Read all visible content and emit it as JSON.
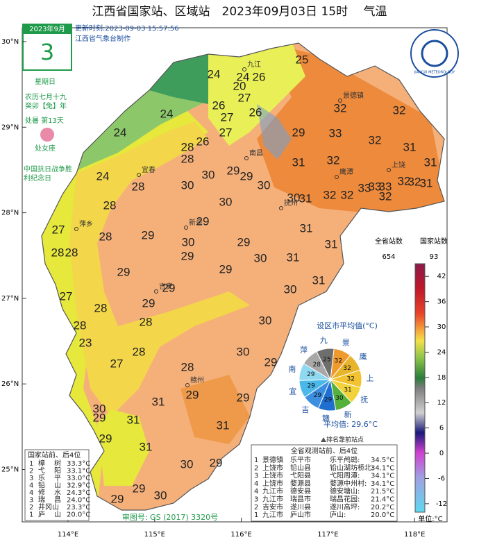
{
  "title": "江西省国家站、区域站　2023年09月03日 15时　 气温",
  "calendar": {
    "month": "2023年9月",
    "day": "3",
    "weekday": "星期日",
    "lunar": "农历七月十九",
    "year_name": "癸卯【兔】年",
    "solar_term": "处暑 第13天",
    "zodiac": "处女座",
    "event": "中国抗日战争胜利纪念日"
  },
  "update": {
    "time": "更新时刻:2023-09-03 15:57:56",
    "maker": "江西省气象台制作"
  },
  "logo": "JIANGXI METEOROLOGY",
  "lat_ticks": [
    {
      "value": 30,
      "label": "30°N"
    },
    {
      "value": 29,
      "label": "29°N"
    },
    {
      "value": 28,
      "label": "28°N"
    },
    {
      "value": 27,
      "label": "27°N"
    },
    {
      "value": 26,
      "label": "26°N"
    },
    {
      "value": 25,
      "label": "25°N"
    }
  ],
  "lon_ticks": [
    {
      "value": 114,
      "label": "114°E"
    },
    {
      "value": 115,
      "label": "115°E"
    },
    {
      "value": 116,
      "label": "116°E"
    },
    {
      "value": 117,
      "label": "117°E"
    },
    {
      "value": 118,
      "label": "118°E"
    }
  ],
  "station_values": [
    "25",
    "24",
    "24",
    "26",
    "20",
    "27",
    "26",
    "27",
    "26",
    "24",
    "24",
    "27",
    "26",
    "28",
    "28",
    "29",
    "32",
    "32",
    "33",
    "32",
    "31",
    "31",
    "30",
    "29",
    "29",
    "30",
    "31",
    "32",
    "24",
    "28",
    "30",
    "30",
    "30",
    "31",
    "32",
    "32",
    "33",
    "33",
    "33",
    "32",
    "32",
    "32",
    "31",
    "28",
    "29",
    "29",
    "28",
    "27",
    "28",
    "28",
    "30",
    "29",
    "31",
    "31",
    "30",
    "29",
    "29",
    "31",
    "31",
    "30",
    "29",
    "29",
    "27",
    "29",
    "30",
    "28",
    "28",
    "28",
    "23",
    "28",
    "27",
    "28",
    "30",
    "29",
    "29",
    "31",
    "29",
    "30",
    "29",
    "31",
    "29",
    "31",
    "31",
    "30",
    "29",
    "29",
    "30",
    "29"
  ],
  "city_names": [
    "九江",
    "景德镇",
    "南昌",
    "上饶",
    "鹰潭",
    "抚州",
    "宜春",
    "新余",
    "萍乡",
    "吉安",
    "赣州"
  ],
  "legend": {
    "all_label": "全省站数",
    "all_count": "654",
    "national_label": "国家站数",
    "national_count": "93",
    "unit": "单位:°C",
    "lim": [
      -14,
      45
    ],
    "ticks": [
      42,
      36,
      30,
      24,
      18,
      12,
      6,
      0,
      -6,
      -12
    ]
  },
  "pie": {
    "title": "设区市平均值(°C)",
    "average": "平均值: 29.6°C",
    "labels": [
      "景",
      "鹰",
      "上",
      "抚",
      "新",
      "赣",
      "吉",
      "宜",
      "南",
      "萍",
      "九"
    ],
    "values": [
      32,
      32,
      32,
      31,
      30,
      29,
      29,
      29,
      29,
      28,
      25
    ],
    "colors": [
      "#f09a2e",
      "#e7b42c",
      "#f2c230",
      "#f2d23a",
      "#55b03c",
      "#1f6fd1",
      "#3c8ee0",
      "#4ab8e8",
      "#8ed8f0",
      "#a8a8a8",
      "#6e6e6e"
    ]
  },
  "top_note": "排名靠前站点",
  "national_table": {
    "title": "国家站前、后4位",
    "rows": [
      [
        "1",
        "樟",
        "树",
        "33.3°C"
      ],
      [
        "2",
        "弋",
        "阳",
        "33.1°C"
      ],
      [
        "3",
        "乐",
        "平",
        "33.0°C"
      ],
      [
        "4",
        "铅",
        "山",
        "32.9°C"
      ],
      [
        "4",
        "修",
        "水",
        "24.3°C"
      ],
      [
        "3",
        "瑞",
        "昌",
        "24.0°C"
      ],
      [
        "2",
        "井冈山",
        "",
        "23.3°C"
      ],
      [
        "1",
        "庐",
        "山",
        "20.0°C"
      ]
    ]
  },
  "all_table": {
    "title": "全省观测站前、后4位",
    "rows": [
      [
        "1",
        "景德镇",
        "乐平市",
        "乐平鸬鹚:",
        "34.5°C"
      ],
      [
        "2",
        "上饶市",
        "铅山县",
        "铅山湖坊桥北:",
        "34.1°C"
      ],
      [
        "3",
        "上饶市",
        "弋阳县",
        "弋阳周潭:",
        "34.1°C"
      ],
      [
        "4",
        "上饶市",
        "婺源县",
        "婺源中州村:",
        "34.1°C"
      ],
      [
        "4",
        "九江市",
        "德安县",
        "德安塘山:",
        "21.5°C"
      ],
      [
        "3",
        "九江市",
        "瑞昌市",
        "瑞昌花园:",
        "21.4°C"
      ],
      [
        "2",
        "吉安市",
        "遂川县",
        "遂川高坪:",
        "20.2°C"
      ],
      [
        "1",
        "九江市",
        "庐山市",
        "庐山:",
        "20.0°C"
      ]
    ]
  },
  "approval": "审图号: GS (2017) 3320号"
}
